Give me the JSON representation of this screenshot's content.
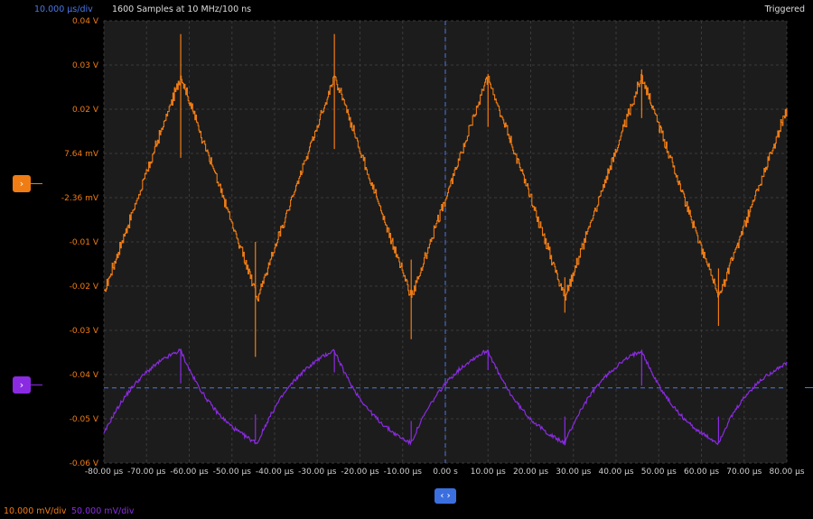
{
  "header": {
    "timebase": "10.000 µs/div",
    "samples": "1600 Samples at 10 MHz/100 ns",
    "status": "Triggered"
  },
  "footer": {
    "ch1_scale": "10.000 mV/div",
    "ch2_scale": "50.000 mV/div"
  },
  "colors": {
    "ch1": "#f07c14",
    "ch2": "#8a2be2",
    "timebase": "#4a78e8",
    "grid": "#3a3a3a",
    "plot_bg": "#1c1c1c",
    "page_bg": "#000000"
  },
  "icons": {
    "ch1_marker": "chevron-right-icon",
    "ch2_marker": "chevron-right-icon",
    "center_button": "left-right-arrows-icon"
  },
  "chart_data": {
    "type": "line",
    "title": "",
    "xlabel": "",
    "ylabel": "",
    "xlim": [
      -80,
      80
    ],
    "ylim": [
      -0.06,
      0.04
    ],
    "grid": true,
    "x_tick_labels": [
      "-80.00 µs",
      "-70.00 µs",
      "-60.00 µs",
      "-50.00 µs",
      "-40.00 µs",
      "-30.00 µs",
      "-20.00 µs",
      "-10.00 µs",
      "0.00 s",
      "10.00 µs",
      "20.00 µs",
      "30.00 µs",
      "40.00 µs",
      "50.00 µs",
      "60.00 µs",
      "70.00 µs",
      "80.00 µs"
    ],
    "y_tick_labels": [
      "0.04 V",
      "0.03 V",
      "0.02 V",
      "7.64 mV",
      "-2.36 mV",
      "-0.01 V",
      "-0.02 V",
      "-0.03 V",
      "-0.04 V",
      "-0.05 V",
      "-0.06 V"
    ],
    "trigger_level_v": -0.043,
    "series": [
      {
        "shape": "triangle",
        "x_us": [
          -80,
          -62,
          -44,
          -26,
          -8,
          10,
          28,
          46,
          64,
          80
        ],
        "y_v": [
          -0.0215,
          0.0275,
          -0.0225,
          0.0275,
          -0.0225,
          0.0275,
          -0.0225,
          0.0275,
          -0.0225,
          0.02
        ]
      },
      {
        "shape": "exponential",
        "x_us": [
          -80,
          -62,
          -44,
          -26,
          -8,
          10,
          28,
          46,
          64,
          80
        ],
        "y_v": [
          -0.0535,
          -0.0345,
          -0.0555,
          -0.0345,
          -0.0555,
          -0.0345,
          -0.0555,
          -0.0345,
          -0.0555,
          -0.0375
        ]
      }
    ]
  }
}
